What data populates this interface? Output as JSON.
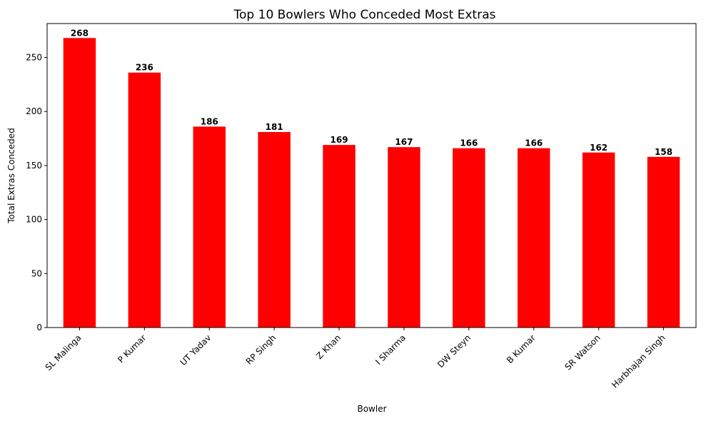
{
  "chart_data": {
    "type": "bar",
    "title": "Top 10 Bowlers Who Conceded Most Extras",
    "xlabel": "Bowler",
    "ylabel": "Total Extras Conceded",
    "categories": [
      "SL Malinga",
      "P Kumar",
      "UT Yadav",
      "RP Singh",
      "Z Khan",
      "I Sharma",
      "DW Steyn",
      "B Kumar",
      "SR Watson",
      "Harbhajan Singh"
    ],
    "values": [
      268,
      236,
      186,
      181,
      169,
      167,
      166,
      166,
      162,
      158
    ],
    "ylim": [
      0,
      281.4
    ],
    "yticks": [
      0,
      50,
      100,
      150,
      200,
      250
    ],
    "bar_color": "#ff0000",
    "grid": false,
    "legend": "none"
  }
}
